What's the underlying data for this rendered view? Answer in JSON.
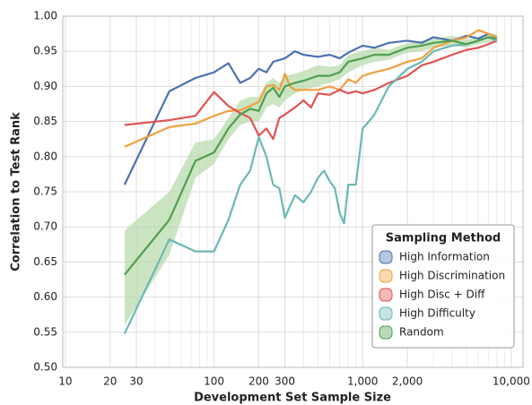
{
  "chart_data": {
    "type": "line",
    "x_label": "Development Set Sample Size",
    "y_label": "Correlation to Test Rank",
    "legend_title": "Sampling Method",
    "legend": "lower right",
    "x_log": true,
    "grid": true,
    "xlim": [
      9.6,
      12000
    ],
    "ylim": [
      0.5,
      1.0
    ],
    "xticks": [
      10,
      20,
      30,
      100,
      200,
      300,
      {
        "value": 1000,
        "label": "1,000"
      },
      {
        "value": 2000,
        "label": "2,000"
      },
      {
        "value": 10000,
        "label": "10,000"
      }
    ],
    "xminor": [
      40,
      50,
      60,
      70,
      80,
      90,
      400,
      500,
      600,
      700,
      800,
      900,
      3000,
      4000,
      5000,
      6000,
      7000,
      8000,
      9000
    ],
    "yticks": [
      {
        "value": 0.5,
        "label": "0.50"
      },
      {
        "value": 0.55,
        "label": "0.55"
      },
      {
        "value": 0.6,
        "label": "0.60"
      },
      {
        "value": 0.65,
        "label": "0.65"
      },
      {
        "value": 0.7,
        "label": "0.70"
      },
      {
        "value": 0.75,
        "label": "0.75"
      },
      {
        "value": 0.8,
        "label": "0.80"
      },
      {
        "value": 0.85,
        "label": "0.85"
      },
      {
        "value": 0.9,
        "label": "0.90"
      },
      {
        "value": 0.95,
        "label": "0.95"
      },
      {
        "value": 1.0,
        "label": "1.00"
      }
    ],
    "series": [
      {
        "name": "High Information",
        "color": "#4c72b0",
        "x": [
          25,
          50,
          75,
          100,
          125,
          150,
          175,
          200,
          225,
          250,
          300,
          350,
          400,
          500,
          600,
          700,
          800,
          1000,
          1200,
          1500,
          2000,
          2500,
          3000,
          4000,
          5000,
          6000,
          7000,
          8000
        ],
        "values": [
          0.76,
          0.893,
          0.912,
          0.92,
          0.933,
          0.905,
          0.912,
          0.925,
          0.92,
          0.935,
          0.94,
          0.95,
          0.945,
          0.942,
          0.945,
          0.94,
          0.948,
          0.958,
          0.955,
          0.962,
          0.965,
          0.962,
          0.97,
          0.965,
          0.972,
          0.968,
          0.975,
          0.97
        ]
      },
      {
        "name": "High Discrimination",
        "color": "#f0a040",
        "x": [
          25,
          50,
          75,
          100,
          125,
          150,
          175,
          200,
          225,
          250,
          275,
          300,
          325,
          350,
          400,
          500,
          600,
          700,
          800,
          900,
          1000,
          1200,
          1500,
          2000,
          2500,
          3000,
          3500,
          4000,
          5000,
          6000,
          7000,
          8000
        ],
        "values": [
          0.814,
          0.842,
          0.847,
          0.858,
          0.865,
          0.866,
          0.872,
          0.878,
          0.9,
          0.902,
          0.895,
          0.918,
          0.9,
          0.895,
          0.895,
          0.895,
          0.9,
          0.895,
          0.91,
          0.905,
          0.915,
          0.92,
          0.925,
          0.935,
          0.94,
          0.955,
          0.96,
          0.965,
          0.97,
          0.98,
          0.975,
          0.97
        ]
      },
      {
        "name": "High Disc + Diff",
        "color": "#e05252",
        "x": [
          25,
          50,
          75,
          100,
          125,
          150,
          175,
          200,
          225,
          250,
          275,
          300,
          350,
          400,
          450,
          500,
          600,
          700,
          800,
          900,
          1000,
          1200,
          1500,
          2000,
          2500,
          3000,
          4000,
          5000,
          6000,
          7000,
          8000
        ],
        "values": [
          0.845,
          0.852,
          0.858,
          0.892,
          0.872,
          0.862,
          0.855,
          0.83,
          0.84,
          0.825,
          0.855,
          0.86,
          0.87,
          0.88,
          0.87,
          0.89,
          0.888,
          0.895,
          0.89,
          0.893,
          0.89,
          0.895,
          0.905,
          0.915,
          0.93,
          0.935,
          0.945,
          0.952,
          0.955,
          0.96,
          0.965
        ]
      },
      {
        "name": "High Difficulty",
        "color": "#6bb8b6",
        "x": [
          25,
          50,
          75,
          100,
          125,
          150,
          175,
          200,
          225,
          250,
          275,
          300,
          325,
          350,
          400,
          450,
          500,
          550,
          600,
          650,
          700,
          750,
          800,
          900,
          1000,
          1100,
          1200,
          1500,
          2000,
          2500,
          3000,
          4000,
          5000,
          6000,
          7000,
          8000
        ],
        "values": [
          0.548,
          0.682,
          0.665,
          0.665,
          0.71,
          0.76,
          0.78,
          0.828,
          0.8,
          0.76,
          0.755,
          0.713,
          0.73,
          0.745,
          0.735,
          0.75,
          0.77,
          0.78,
          0.765,
          0.755,
          0.72,
          0.705,
          0.76,
          0.76,
          0.84,
          0.85,
          0.86,
          0.9,
          0.925,
          0.935,
          0.95,
          0.958,
          0.96,
          0.965,
          0.97,
          0.965
        ]
      },
      {
        "name": "Random",
        "color": "#4fa04f",
        "band_color": "#b5d9a8",
        "x": [
          25,
          50,
          75,
          100,
          125,
          150,
          175,
          200,
          225,
          250,
          275,
          300,
          350,
          400,
          500,
          600,
          700,
          800,
          1000,
          1200,
          1500,
          2000,
          2500,
          3000,
          4000,
          5000,
          6000,
          7000,
          8000
        ],
        "values": [
          0.632,
          0.71,
          0.794,
          0.806,
          0.84,
          0.86,
          0.868,
          0.865,
          0.89,
          0.898,
          0.885,
          0.9,
          0.905,
          0.908,
          0.915,
          0.915,
          0.92,
          0.935,
          0.94,
          0.945,
          0.945,
          0.955,
          0.958,
          0.962,
          0.965,
          0.96,
          0.965,
          0.97,
          0.968
        ],
        "lower": [
          0.56,
          0.66,
          0.77,
          0.79,
          0.825,
          0.845,
          0.85,
          0.85,
          0.87,
          0.875,
          0.87,
          0.88,
          0.89,
          0.895,
          0.9,
          0.905,
          0.91,
          0.92,
          0.93,
          0.935,
          0.938,
          0.948,
          0.95,
          0.955,
          0.958,
          0.955,
          0.96,
          0.962,
          0.962
        ],
        "upper": [
          0.695,
          0.75,
          0.82,
          0.825,
          0.855,
          0.88,
          0.885,
          0.885,
          0.905,
          0.912,
          0.905,
          0.915,
          0.918,
          0.922,
          0.93,
          0.928,
          0.93,
          0.945,
          0.95,
          0.955,
          0.952,
          0.962,
          0.965,
          0.968,
          0.972,
          0.967,
          0.97,
          0.976,
          0.974
        ]
      }
    ]
  }
}
